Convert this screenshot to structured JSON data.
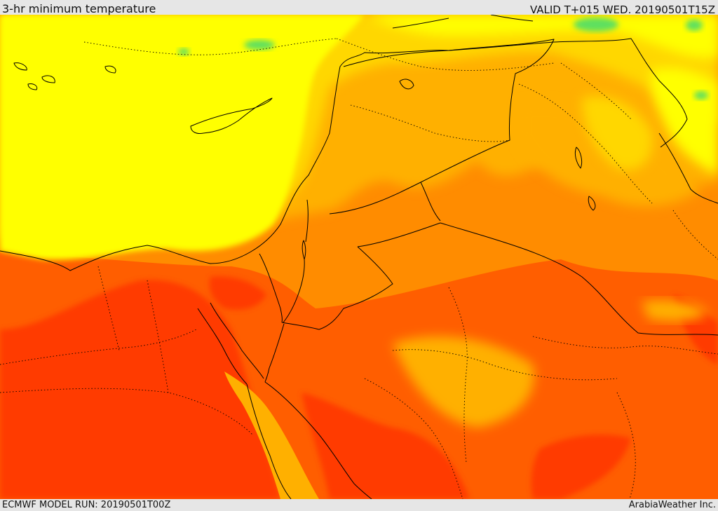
{
  "header": {
    "title": "3-hr minimum temperature",
    "valid_time": "VALID T+015 WED. 20190501T15Z"
  },
  "footer": {
    "model_run": "ECMWF MODEL RUN: 20190501T00Z",
    "credit": "ArabiaWeather Inc."
  },
  "map": {
    "variable": "3-hr minimum temperature",
    "colors": {
      "cool_green": "#5ee05e",
      "light_yellow": "#ffff33",
      "yellow": "#ffff00",
      "gold": "#ffd700",
      "amber": "#ffb000",
      "orange": "#ff8c00",
      "dark_orange": "#ff5e00",
      "red_orange": "#ff3a00",
      "border_line": "#000000"
    }
  }
}
